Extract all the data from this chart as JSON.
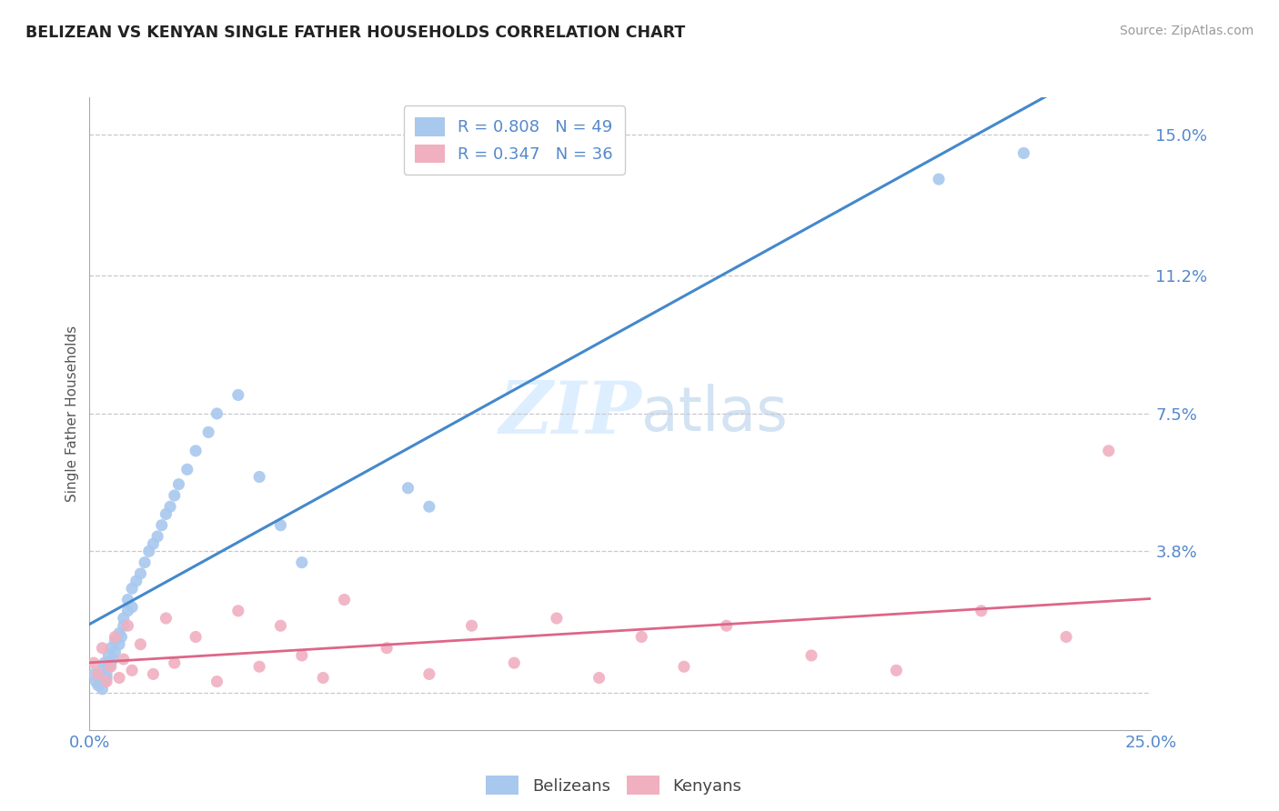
{
  "title": "BELIZEAN VS KENYAN SINGLE FATHER HOUSEHOLDS CORRELATION CHART",
  "source": "Source: ZipAtlas.com",
  "ylabel": "Single Father Households",
  "xlim": [
    0.0,
    25.0
  ],
  "ylim": [
    -1.0,
    16.0
  ],
  "ytick_vals": [
    0.0,
    3.8,
    7.5,
    11.2,
    15.0
  ],
  "ytick_labels": [
    "",
    "3.8%",
    "7.5%",
    "11.2%",
    "15.0%"
  ],
  "xtick_vals": [
    0.0,
    25.0
  ],
  "xtick_labels": [
    "0.0%",
    "25.0%"
  ],
  "grid_color": "#c8c8d0",
  "background_color": "#ffffff",
  "blue_color": "#a8c8ee",
  "pink_color": "#f0b0c0",
  "line_blue": "#4488cc",
  "line_pink": "#dd6688",
  "axis_text_color": "#5588cc",
  "legend_R_blue": "R = 0.808",
  "legend_N_blue": "N = 49",
  "legend_R_pink": "R = 0.347",
  "legend_N_pink": "N = 36",
  "watermark_color": "#ddeeff",
  "belizean_x": [
    0.1,
    0.15,
    0.2,
    0.25,
    0.3,
    0.3,
    0.35,
    0.35,
    0.4,
    0.4,
    0.45,
    0.45,
    0.5,
    0.5,
    0.55,
    0.6,
    0.6,
    0.7,
    0.7,
    0.75,
    0.8,
    0.8,
    0.9,
    0.9,
    1.0,
    1.0,
    1.1,
    1.2,
    1.3,
    1.4,
    1.5,
    1.6,
    1.7,
    1.8,
    1.9,
    2.0,
    2.1,
    2.3,
    2.5,
    2.8,
    3.0,
    3.5,
    4.0,
    4.5,
    5.0,
    7.5,
    8.0,
    20.0,
    22.0
  ],
  "belizean_y": [
    0.5,
    0.3,
    0.2,
    0.4,
    0.1,
    0.6,
    0.3,
    0.8,
    0.4,
    0.5,
    0.7,
    1.0,
    0.8,
    1.2,
    0.9,
    1.1,
    1.4,
    1.3,
    1.6,
    1.5,
    1.8,
    2.0,
    2.2,
    2.5,
    2.3,
    2.8,
    3.0,
    3.2,
    3.5,
    3.8,
    4.0,
    4.2,
    4.5,
    4.8,
    5.0,
    5.3,
    5.6,
    6.0,
    6.5,
    7.0,
    7.5,
    8.0,
    5.8,
    4.5,
    3.5,
    5.5,
    5.0,
    13.8,
    14.5
  ],
  "kenyan_x": [
    0.1,
    0.2,
    0.3,
    0.4,
    0.5,
    0.6,
    0.7,
    0.8,
    0.9,
    1.0,
    1.2,
    1.5,
    1.8,
    2.0,
    2.5,
    3.0,
    3.5,
    4.0,
    4.5,
    5.0,
    5.5,
    6.0,
    7.0,
    8.0,
    9.0,
    10.0,
    11.0,
    12.0,
    13.0,
    14.0,
    15.0,
    17.0,
    19.0,
    21.0,
    23.0,
    24.0
  ],
  "kenyan_y": [
    0.8,
    0.5,
    1.2,
    0.3,
    0.7,
    1.5,
    0.4,
    0.9,
    1.8,
    0.6,
    1.3,
    0.5,
    2.0,
    0.8,
    1.5,
    0.3,
    2.2,
    0.7,
    1.8,
    1.0,
    0.4,
    2.5,
    1.2,
    0.5,
    1.8,
    0.8,
    2.0,
    0.4,
    1.5,
    0.7,
    1.8,
    1.0,
    0.6,
    2.2,
    1.5,
    6.5
  ]
}
